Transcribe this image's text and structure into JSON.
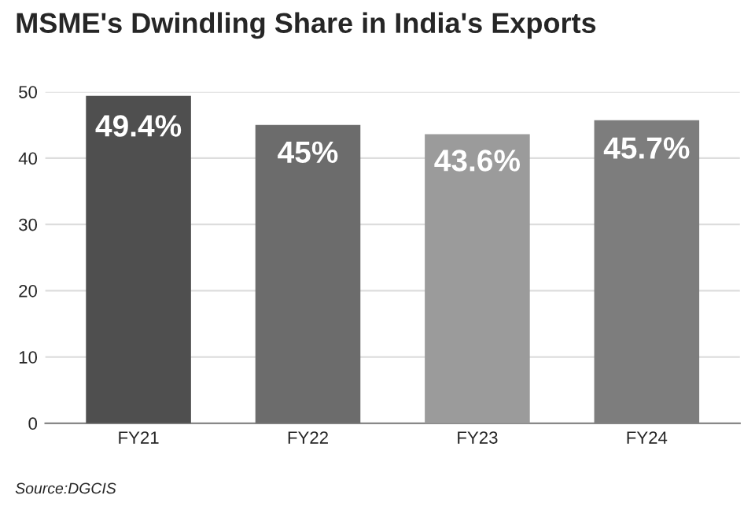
{
  "chart_data": {
    "type": "bar",
    "title": "MSME's Dwindling Share in India's Exports",
    "categories": [
      "FY21",
      "FY22",
      "FY23",
      "FY24"
    ],
    "values": [
      49.4,
      45,
      43.6,
      45.7
    ],
    "colors": [
      "#4f4f4f",
      "#6c6c6c",
      "#9b9b9b",
      "#7d7d7d"
    ],
    "value_labels": [
      "49.4%",
      "45%",
      "43.6%",
      "45.7%"
    ],
    "ylim": [
      0,
      50
    ],
    "yticks": [
      0,
      10,
      20,
      30,
      40,
      50
    ],
    "grid": "y",
    "legend": false,
    "annotations": [
      "Source:DGCIS"
    ]
  }
}
